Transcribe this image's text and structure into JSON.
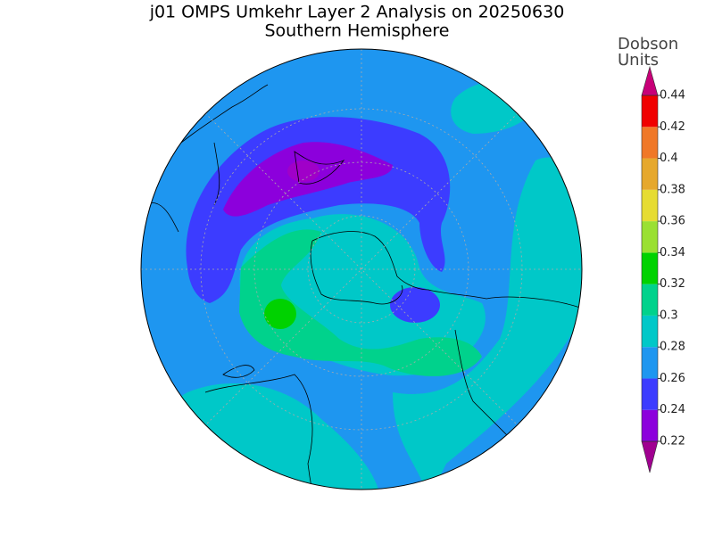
{
  "header": {
    "title": "j01 OMPS Umkehr Layer 2 Analysis on 20250630",
    "subtitle": "Southern Hemisphere"
  },
  "colorbar": {
    "label_lines": [
      "Dobson",
      "Units"
    ],
    "ticks": [
      0.22,
      0.24,
      0.26,
      0.28,
      0.3,
      0.32,
      0.34,
      0.36,
      0.38,
      0.4,
      0.42,
      0.44
    ],
    "colors": [
      "#8c00dc",
      "#3c3cff",
      "#1e96f0",
      "#00c8c8",
      "#00d28c",
      "#00d200",
      "#9ae032",
      "#e6dc32",
      "#e6a82d",
      "#f07828",
      "#f00000"
    ],
    "under_color": "#a00090",
    "over_color": "#c80078"
  }
}
